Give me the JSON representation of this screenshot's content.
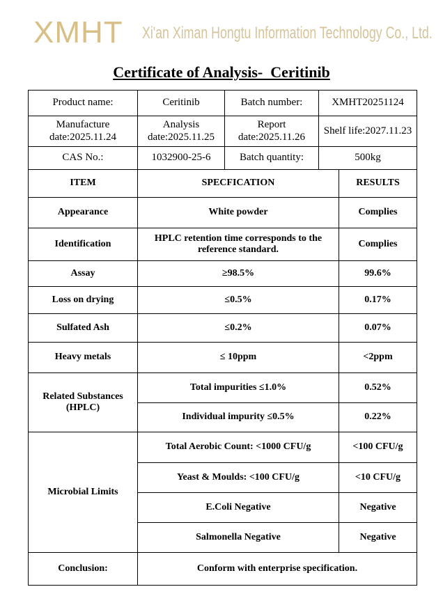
{
  "header": {
    "logo": "XMHT",
    "company": "Xi'an Ximan Hongtu Information Technology Co., Ltd."
  },
  "title": "Certificate of Analysis-  Ceritinib",
  "info": {
    "rows": [
      [
        "Product name:",
        "Ceritinib",
        "Batch number:",
        "XMHT20251124"
      ],
      [
        "Manufacture date:2025.11.24",
        "Analysis date:2025.11.25",
        "Report date:2025.11.26",
        "Shelf life:2027.11.23"
      ],
      [
        "CAS No.:",
        "1032900-25-6",
        "Batch quantity:",
        "500kg"
      ]
    ]
  },
  "table": {
    "columns": [
      "ITEM",
      "SPECFICATION",
      "RESULTS"
    ],
    "groups": [
      {
        "item": "Appearance",
        "tests": [
          {
            "spec": "White powder",
            "result": "Complies"
          }
        ]
      },
      {
        "item": "Identification",
        "tests": [
          {
            "spec": "HPLC retention time corresponds to the reference standard.",
            "result": "Complies"
          }
        ]
      },
      {
        "item": "Assay",
        "tests": [
          {
            "spec": "≥98.5%",
            "result": "99.6%"
          }
        ]
      },
      {
        "item": "Loss on drying",
        "tests": [
          {
            "spec": "≤0.5%",
            "result": "0.17%"
          }
        ]
      },
      {
        "item": "Sulfated Ash",
        "tests": [
          {
            "spec": "≤0.2%",
            "result": "0.07%"
          }
        ]
      },
      {
        "item": "Heavy metals",
        "tests": [
          {
            "spec": "≤ 10ppm",
            "result": "<2ppm"
          }
        ]
      },
      {
        "item": "Related Substances (HPLC)",
        "tests": [
          {
            "spec": "Total impurities ≤1.0%",
            "result": "0.52%"
          },
          {
            "spec": "Individual impurity ≤0.5%",
            "result": "0.22%"
          }
        ]
      },
      {
        "item": "Microbial Limits",
        "tests": [
          {
            "spec": "Total Aerobic Count: <1000 CFU/g",
            "result": "<100 CFU/g"
          },
          {
            "spec": "Yeast & Moulds: <100 CFU/g",
            "result": "<10 CFU/g"
          },
          {
            "spec": "E.Coli Negative",
            "result": "Negative"
          },
          {
            "spec": "Salmonella Negative",
            "result": "Negative"
          }
        ]
      }
    ],
    "conclusion": {
      "label": "Conclusion:",
      "text": "Conform with enterprise specification."
    }
  }
}
